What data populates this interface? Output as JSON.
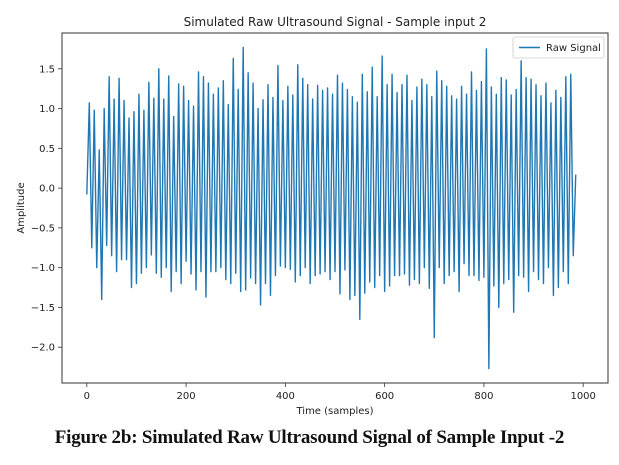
{
  "caption": "Figure 2b: Simulated Raw Ultrasound Signal of Sample Input -2",
  "chart_data": {
    "type": "line",
    "title": "Simulated Raw Ultrasound Signal - Sample input 2",
    "xlabel": "Time (samples)",
    "ylabel": "Amplitude",
    "xlim": [
      -50,
      1050
    ],
    "ylim": [
      -2.45,
      1.95
    ],
    "xticks": [
      0,
      200,
      400,
      600,
      800,
      1000
    ],
    "xtick_labels": [
      "0",
      "200",
      "400",
      "600",
      "800",
      "1000"
    ],
    "yticks": [
      -2.0,
      -1.5,
      -1.0,
      -0.5,
      0.0,
      0.5,
      1.0,
      1.5
    ],
    "ytick_labels": [
      "−2.0",
      "−1.5",
      "−1.0",
      "−0.5",
      "0.0",
      "0.5",
      "1.0",
      "1.5"
    ],
    "grid": false,
    "legend": {
      "position": "top-right",
      "entries": [
        "Raw Signal"
      ]
    },
    "series": [
      {
        "name": "Raw Signal",
        "color": "#1f77b4",
        "x_start": 0,
        "x_step": 5,
        "values": [
          -0.08,
          1.07,
          -0.75,
          0.98,
          -1.0,
          0.48,
          -1.4,
          1.0,
          -0.72,
          1.4,
          -0.85,
          1.12,
          -1.05,
          1.38,
          -0.9,
          1.1,
          -0.9,
          0.88,
          -1.25,
          0.96,
          -1.2,
          1.18,
          -1.07,
          0.98,
          -1.0,
          1.33,
          -0.84,
          1.13,
          -1.07,
          1.5,
          -1.12,
          1.12,
          -1.0,
          1.41,
          -1.3,
          0.9,
          -1.05,
          1.31,
          -1.2,
          1.28,
          -0.92,
          1.1,
          -1.08,
          1.03,
          -1.28,
          1.46,
          -1.05,
          1.4,
          -1.37,
          1.32,
          -1.05,
          1.18,
          -1.05,
          1.26,
          -1.0,
          1.35,
          -1.15,
          1.05,
          -1.2,
          1.63,
          -1.07,
          1.24,
          -1.3,
          1.77,
          -1.28,
          1.45,
          -1.13,
          1.32,
          -1.2,
          1.0,
          -1.47,
          1.11,
          -1.2,
          1.3,
          -1.35,
          1.14,
          -1.1,
          1.54,
          -0.98,
          1.1,
          -1.0,
          1.28,
          -1.02,
          1.17,
          -1.18,
          1.55,
          -1.1,
          1.38,
          -1.0,
          1.3,
          -1.2,
          1.12,
          -1.1,
          1.29,
          -1.08,
          1.23,
          -1.05,
          1.26,
          -1.15,
          1.18,
          -1.05,
          1.42,
          -1.33,
          1.32,
          -1.03,
          1.24,
          -1.4,
          1.15,
          -1.35,
          1.08,
          -1.65,
          1.43,
          -1.32,
          1.21,
          -1.18,
          1.52,
          -1.25,
          1.15,
          -1.1,
          1.66,
          -1.3,
          1.3,
          -1.23,
          1.43,
          -1.1,
          1.2,
          -1.1,
          1.3,
          -1.08,
          1.42,
          -1.22,
          1.1,
          -1.15,
          1.27,
          -1.2,
          1.37,
          -1.0,
          1.3,
          -1.26,
          1.15,
          -1.88,
          1.47,
          -1.0,
          1.35,
          -1.2,
          1.28,
          -1.1,
          1.16,
          -1.05,
          1.12,
          -1.3,
          1.28,
          -0.95,
          1.18,
          -1.1,
          1.46,
          -1.1,
          1.23,
          -1.16,
          1.34,
          -1.12,
          1.75,
          -2.27,
          1.27,
          -1.23,
          1.18,
          -1.5,
          1.39,
          -1.2,
          1.36,
          -1.15,
          1.17,
          -1.56,
          1.24,
          -1.1,
          1.6,
          -1.12,
          1.39,
          -1.3,
          1.37,
          -1.05,
          1.3,
          -1.15,
          1.16,
          -1.2,
          1.32,
          -1.0,
          1.07,
          -1.35,
          1.23,
          -1.25,
          1.14,
          -1.05,
          1.4,
          -1.2,
          1.43,
          -0.85,
          0.17
        ]
      }
    ]
  }
}
